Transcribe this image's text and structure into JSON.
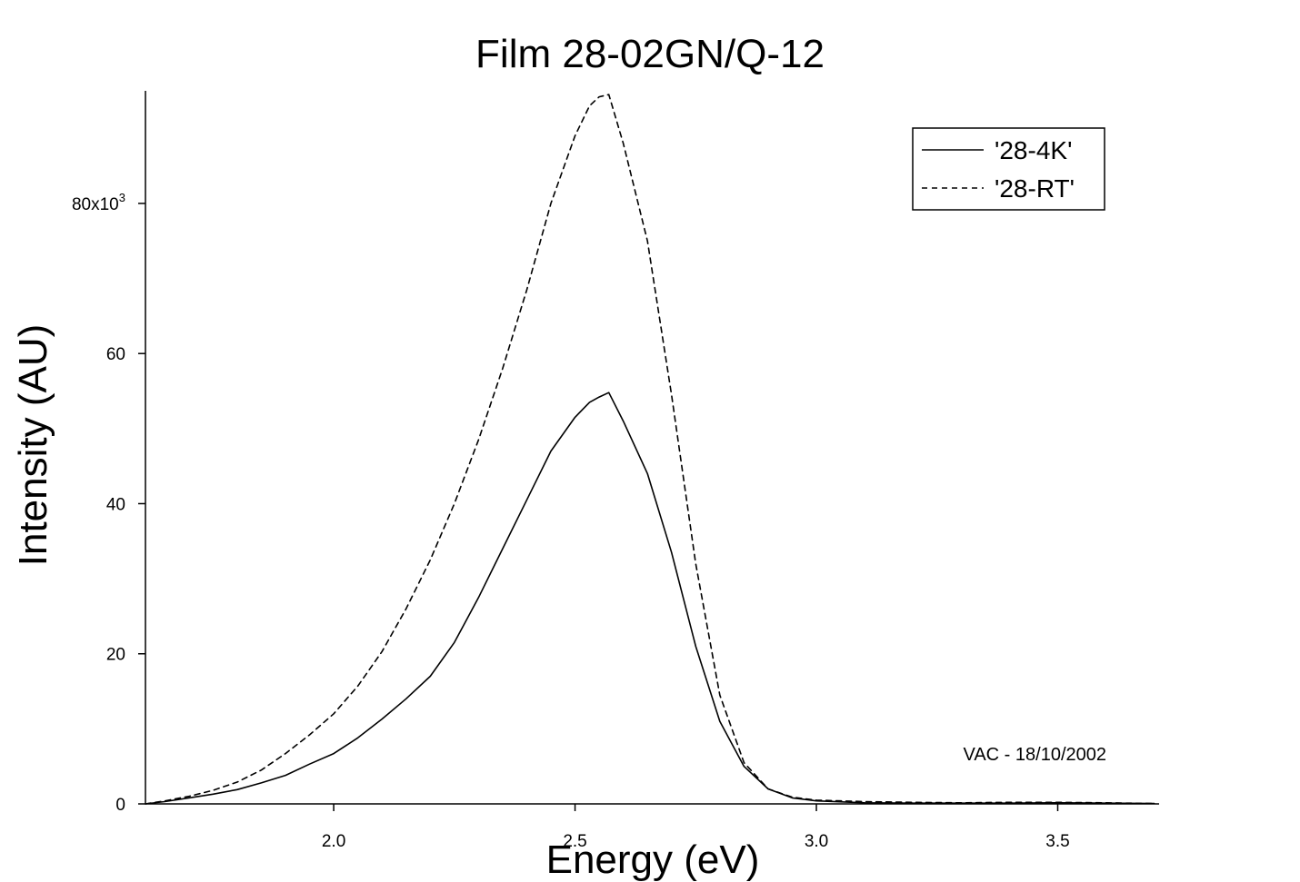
{
  "chart_data": {
    "type": "line",
    "title": "Film 28-02GN/Q-12",
    "xlabel": "Energy (eV)",
    "ylabel": "Intensity (AU)",
    "xlim": [
      1.61,
      3.71
    ],
    "ylim": [
      0,
      95000
    ],
    "x_ticks": [
      {
        "value": 2.0,
        "label": "2.0"
      },
      {
        "value": 2.5,
        "label": "2.5"
      },
      {
        "value": 3.0,
        "label": "3.0"
      },
      {
        "value": 3.5,
        "label": "3.5"
      }
    ],
    "y_ticks": [
      {
        "value": 0,
        "label": "0"
      },
      {
        "value": 20000,
        "label": "20"
      },
      {
        "value": 40000,
        "label": "40"
      },
      {
        "value": 60000,
        "label": "60"
      },
      {
        "value": 80000,
        "label": "80x10",
        "exponent": "3"
      }
    ],
    "grid": false,
    "legend_position": "top-right",
    "annotation": "VAC - 18/10/2002",
    "series": [
      {
        "name": "'28-4K'",
        "style": "solid",
        "color": "#000000",
        "x": [
          1.61,
          1.65,
          1.7,
          1.75,
          1.8,
          1.85,
          1.9,
          1.95,
          2.0,
          2.05,
          2.1,
          2.15,
          2.2,
          2.25,
          2.3,
          2.35,
          2.4,
          2.45,
          2.5,
          2.53,
          2.55,
          2.57,
          2.6,
          2.65,
          2.7,
          2.75,
          2.8,
          2.85,
          2.9,
          2.95,
          3.0,
          3.1,
          3.2,
          3.3,
          3.4,
          3.5,
          3.6,
          3.7
        ],
        "y": [
          0,
          300,
          800,
          1300,
          1900,
          2800,
          3800,
          5300,
          6700,
          8800,
          11300,
          14000,
          17000,
          21500,
          27500,
          34000,
          40500,
          47000,
          51500,
          53500,
          54200,
          54800,
          51000,
          44000,
          33500,
          21000,
          11000,
          5000,
          2000,
          800,
          400,
          150,
          100,
          100,
          100,
          150,
          100,
          50
        ]
      },
      {
        "name": "'28-RT'",
        "style": "dashed",
        "color": "#000000",
        "x": [
          1.61,
          1.65,
          1.7,
          1.75,
          1.8,
          1.85,
          1.9,
          1.95,
          2.0,
          2.05,
          2.1,
          2.15,
          2.2,
          2.25,
          2.3,
          2.35,
          2.4,
          2.45,
          2.5,
          2.53,
          2.55,
          2.57,
          2.6,
          2.65,
          2.7,
          2.75,
          2.8,
          2.85,
          2.9,
          2.95,
          3.0,
          3.1,
          3.2,
          3.3,
          3.4,
          3.5,
          3.6,
          3.7
        ],
        "y": [
          0,
          400,
          1000,
          1800,
          2900,
          4500,
          6700,
          9200,
          12000,
          15700,
          20300,
          26000,
          32500,
          40000,
          48500,
          58000,
          68500,
          80000,
          89000,
          93000,
          94200,
          94500,
          88000,
          75000,
          54500,
          32000,
          14500,
          5500,
          2000,
          900,
          500,
          300,
          200,
          150,
          200,
          200,
          150,
          50
        ]
      }
    ]
  }
}
